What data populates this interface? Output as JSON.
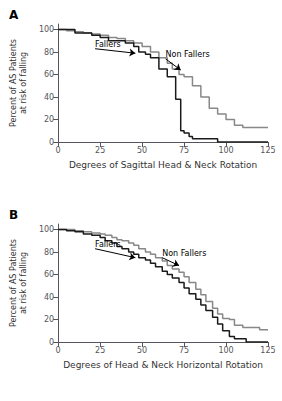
{
  "chart_data": [
    {
      "type": "step",
      "title": "A",
      "xlabel": "Degrees of Sagittal Head & Neck Rotation",
      "ylabel": "Percent of AS Patients\nat risk of falling",
      "xlim": [
        0,
        125
      ],
      "ylim": [
        0,
        105
      ],
      "xticks": [
        0,
        25,
        50,
        75,
        100,
        125
      ],
      "yticks": [
        0,
        20,
        40,
        60,
        80,
        100
      ],
      "grid": false,
      "series": [
        {
          "color": "#888888",
          "x": [
            0,
            5,
            10,
            15,
            20,
            25,
            30,
            35,
            40,
            45,
            50,
            55,
            60,
            65,
            68,
            72,
            75,
            80,
            85,
            90,
            95,
            100,
            105,
            110,
            120,
            125
          ],
          "values": [
            100,
            99,
            98,
            97,
            96,
            95,
            93,
            92,
            90,
            88,
            85,
            80,
            75,
            70,
            65,
            60,
            58,
            50,
            40,
            30,
            25,
            20,
            15,
            13,
            13,
            13
          ]
        },
        {
          "color": "#1a1a1a",
          "x": [
            0,
            5,
            10,
            15,
            20,
            25,
            30,
            35,
            40,
            45,
            48,
            52,
            55,
            60,
            65,
            70,
            73,
            75,
            78,
            80,
            95,
            125
          ],
          "values": [
            100,
            100,
            97,
            97,
            95,
            93,
            90,
            90,
            88,
            85,
            80,
            78,
            75,
            65,
            58,
            38,
            10,
            8,
            5,
            3,
            0,
            0
          ]
        }
      ],
      "annotations": [
        {
          "text": "Fallers",
          "text_x": 22,
          "text_y": 83,
          "x": 46,
          "y": 79
        },
        {
          "text": "Non Fallers",
          "text_x": 64,
          "text_y": 74,
          "x": 73,
          "y": 64
        }
      ]
    },
    {
      "type": "step",
      "title": "B",
      "xlabel": "Degrees of Head & Neck Horizontal Rotation",
      "ylabel": "Percent of AS Patients\nat risk of falling",
      "xlim": [
        0,
        125
      ],
      "ylim": [
        0,
        105
      ],
      "xticks": [
        0,
        25,
        50,
        75,
        100,
        125
      ],
      "yticks": [
        0,
        20,
        40,
        60,
        80,
        100
      ],
      "grid": false,
      "series": [
        {
          "color": "#888888",
          "x": [
            0,
            5,
            10,
            15,
            20,
            25,
            28,
            32,
            35,
            38,
            42,
            45,
            48,
            52,
            55,
            58,
            62,
            65,
            68,
            72,
            75,
            78,
            82,
            85,
            88,
            92,
            95,
            98,
            102,
            105,
            110,
            115,
            120,
            125
          ],
          "values": [
            100,
            100,
            99,
            98,
            97,
            96,
            95,
            93,
            91,
            90,
            88,
            86,
            83,
            80,
            78,
            75,
            72,
            68,
            65,
            62,
            58,
            53,
            47,
            42,
            36,
            30,
            25,
            21,
            20,
            15,
            13,
            13,
            11,
            11
          ]
        },
        {
          "color": "#1a1a1a",
          "x": [
            0,
            5,
            10,
            15,
            20,
            25,
            28,
            32,
            35,
            38,
            42,
            45,
            48,
            52,
            55,
            58,
            62,
            65,
            68,
            72,
            75,
            78,
            82,
            85,
            88,
            92,
            95,
            98,
            102,
            105,
            112,
            125
          ],
          "values": [
            100,
            99,
            98,
            96,
            95,
            93,
            90,
            88,
            85,
            83,
            80,
            78,
            75,
            73,
            70,
            67,
            63,
            60,
            57,
            53,
            48,
            43,
            38,
            33,
            28,
            22,
            16,
            10,
            5,
            3,
            0,
            0
          ]
        }
      ],
      "annotations": [
        {
          "text": "Fallers",
          "text_x": 22,
          "text_y": 83,
          "x": 46,
          "y": 75
        },
        {
          "text": "Non Fallers",
          "text_x": 62,
          "text_y": 75,
          "x": 72,
          "y": 68
        }
      ]
    }
  ]
}
